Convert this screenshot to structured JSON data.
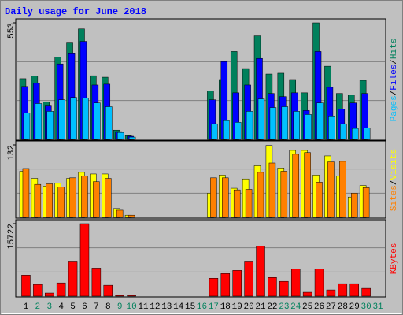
{
  "chart_data": [
    {
      "type": "bar",
      "title": "Daily usage for June 2018",
      "ylim": [
        0,
        553
      ],
      "yticks": [
        553
      ],
      "grid": true,
      "legend_separator": "/",
      "series": [
        {
          "name": "Hits",
          "color": "#00805c",
          "values": [
            288,
            300,
            177,
            391,
            461,
            524,
            302,
            295,
            44,
            18,
            0,
            0,
            0,
            0,
            0,
            0,
            229,
            284,
            417,
            336,
            491,
            310,
            314,
            284,
            221,
            553,
            347,
            218,
            210,
            280,
            0
          ]
        },
        {
          "name": "Files",
          "color": "#0000ff",
          "values": [
            251,
            266,
            162,
            358,
            410,
            465,
            258,
            262,
            37,
            15,
            0,
            0,
            0,
            0,
            0,
            0,
            188,
            369,
            221,
            258,
            384,
            218,
            203,
            221,
            137,
            417,
            247,
            144,
            173,
            218,
            0
          ]
        },
        {
          "name": "Pages",
          "color": "#00c0ff",
          "values": [
            125,
            170,
            133,
            188,
            199,
            196,
            173,
            155,
            33,
            11,
            0,
            0,
            0,
            0,
            0,
            0,
            74,
            89,
            81,
            133,
            192,
            151,
            155,
            133,
            118,
            173,
            111,
            74,
            52,
            55,
            0
          ]
        }
      ]
    },
    {
      "type": "bar",
      "ylim": [
        0,
        132
      ],
      "yticks": [
        132
      ],
      "grid": true,
      "legend_separator": "/",
      "series": [
        {
          "name": "Visits",
          "color": "#ffff00",
          "values": [
            84,
            71,
            57,
            62,
            71,
            82,
            79,
            79,
            16,
            4,
            0,
            0,
            0,
            0,
            0,
            0,
            44,
            77,
            53,
            70,
            94,
            131,
            90,
            122,
            122,
            77,
            112,
            75,
            37,
            58,
            0
          ]
        },
        {
          "name": "Sites",
          "color": "#ff8000",
          "values": [
            89,
            60,
            61,
            55,
            72,
            75,
            65,
            71,
            13,
            4,
            0,
            0,
            0,
            0,
            0,
            0,
            72,
            72,
            50,
            51,
            82,
            99,
            84,
            115,
            118,
            64,
            101,
            102,
            44,
            54,
            0
          ]
        }
      ]
    },
    {
      "type": "bar",
      "ylim": [
        0,
        15722
      ],
      "yticks": [
        15722
      ],
      "grid": true,
      "categories": [
        "1",
        "2",
        "3",
        "4",
        "5",
        "6",
        "7",
        "8",
        "9",
        "10",
        "11",
        "12",
        "13",
        "14",
        "15",
        "16",
        "17",
        "18",
        "19",
        "20",
        "21",
        "22",
        "23",
        "24",
        "25",
        "26",
        "27",
        "28",
        "29",
        "30",
        "31"
      ],
      "category_colors": [
        "#000000",
        "#00805c",
        "#00805c",
        "#000000",
        "#000000",
        "#000000",
        "#000000",
        "#000000",
        "#00805c",
        "#00805c",
        "#000000",
        "#000000",
        "#000000",
        "#000000",
        "#000000",
        "#00805c",
        "#00805c",
        "#000000",
        "#000000",
        "#000000",
        "#000000",
        "#000000",
        "#00805c",
        "#00805c",
        "#000000",
        "#000000",
        "#000000",
        "#000000",
        "#000000",
        "#00805c",
        "#00805c"
      ],
      "series": [
        {
          "name": "KBytes",
          "color": "#ff0000",
          "values": [
            4565,
            2536,
            676,
            2874,
            7439,
            15722,
            6087,
            2367,
            169,
            169,
            0,
            0,
            0,
            0,
            0,
            0,
            3888,
            4903,
            5580,
            7439,
            10820,
            4058,
            3212,
            5918,
            845,
            5918,
            1353,
            2705,
            2705,
            1691,
            0
          ]
        }
      ]
    }
  ]
}
